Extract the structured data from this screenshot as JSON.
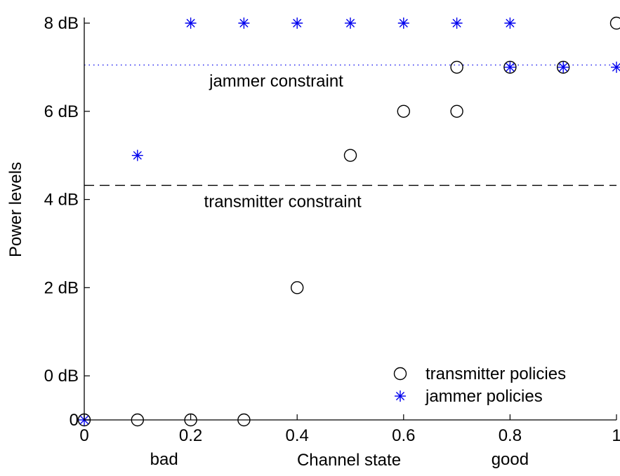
{
  "chart_data": {
    "type": "scatter",
    "xlabel": "Channel state",
    "ylabel": "Power levels",
    "xlim": [
      0,
      1
    ],
    "ylim": [
      0,
      9
    ],
    "grid": false,
    "legend_position": "bottom-right",
    "x_ticks": [
      {
        "value": 0,
        "label": "0"
      },
      {
        "value": 0.2,
        "label": "0.2"
      },
      {
        "value": 0.4,
        "label": "0.4"
      },
      {
        "value": 0.6,
        "label": "0.6"
      },
      {
        "value": 0.8,
        "label": "0.8"
      },
      {
        "value": 1,
        "label": "1"
      }
    ],
    "y_ticks": [
      {
        "value": 0,
        "label": "0"
      },
      {
        "value": 1,
        "label": "0 dB"
      },
      {
        "value": 3,
        "label": "2 dB"
      },
      {
        "value": 5,
        "label": "4 dB"
      },
      {
        "value": 7,
        "label": "6 dB"
      },
      {
        "value": 9,
        "label": "8 dB"
      }
    ],
    "x_extra_labels": [
      {
        "value": 0.15,
        "label": "bad"
      },
      {
        "value": 0.8,
        "label": "good"
      }
    ],
    "series": [
      {
        "name": "transmitter policies",
        "marker": "circle",
        "color": "#000000",
        "x": [
          0,
          0.1,
          0.2,
          0.3,
          0.4,
          0.5,
          0.6,
          0.7,
          0.7,
          0.8,
          0.9,
          1
        ],
        "y": [
          0,
          0,
          0,
          0,
          3,
          6,
          7,
          8,
          7,
          8,
          8,
          9
        ]
      },
      {
        "name": "jammer policies",
        "marker": "asterisk",
        "color": "#0000ee",
        "x": [
          0,
          0.1,
          0.2,
          0.3,
          0.4,
          0.5,
          0.6,
          0.7,
          0.8,
          0.8,
          0.9,
          1
        ],
        "y": [
          0,
          6,
          9,
          9,
          9,
          9,
          9,
          9,
          9,
          8,
          8,
          8
        ]
      }
    ],
    "reference_lines": [
      {
        "label": "jammer constraint",
        "y": 8.05,
        "style": "dotted",
        "color": "#0000ee",
        "label_x": 0.235
      },
      {
        "label": "transmitter constraint",
        "y": 5.32,
        "style": "dashed",
        "color": "#000000",
        "label_x": 0.225
      }
    ]
  }
}
